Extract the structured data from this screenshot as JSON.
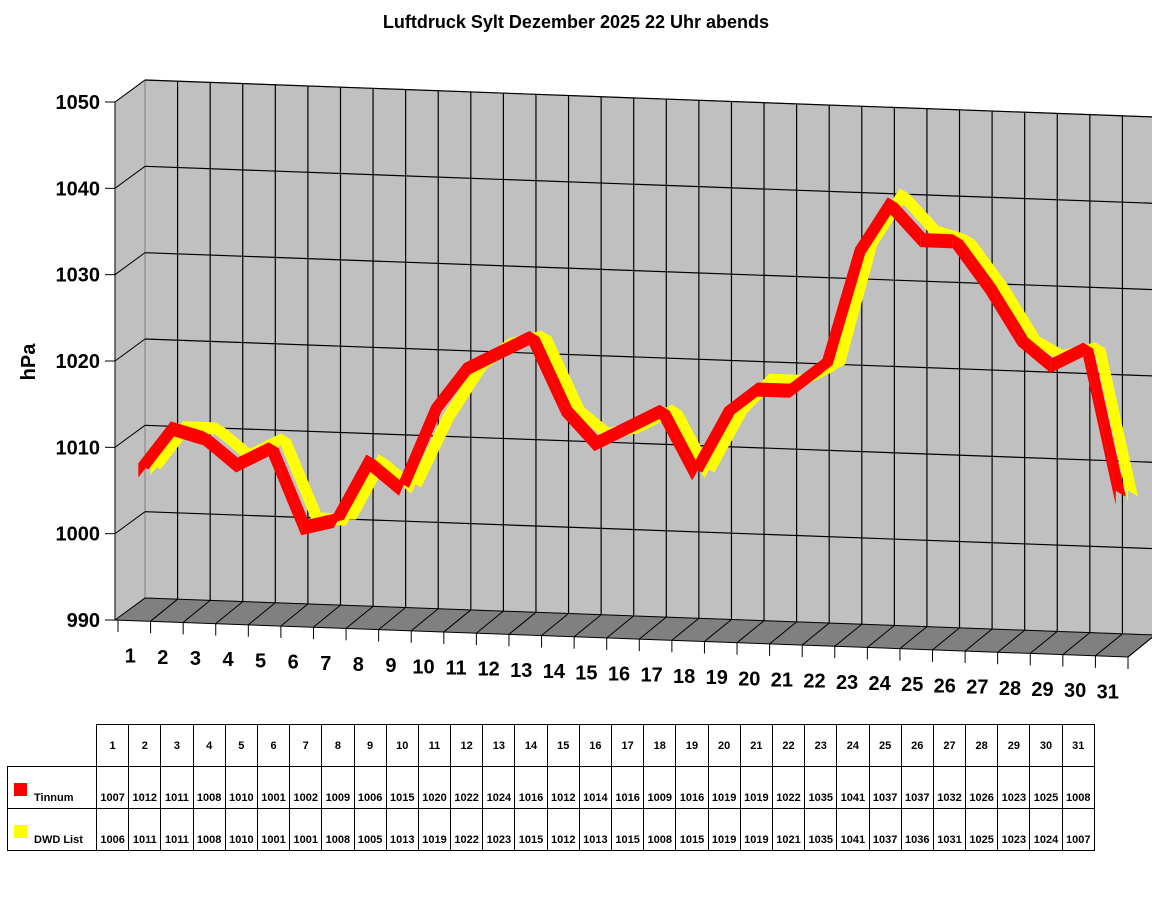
{
  "chart_data": {
    "type": "line",
    "title": "Luftdruck Sylt Dezember 2025 22 Uhr abends",
    "xlabel": "",
    "ylabel": "hPa",
    "ylim": [
      990,
      1050
    ],
    "yticks": [
      990,
      1000,
      1010,
      1020,
      1030,
      1040,
      1050
    ],
    "grid": true,
    "style": "3d-ribbon",
    "legend_position": "data-table-below",
    "categories": [
      "1",
      "2",
      "3",
      "4",
      "5",
      "6",
      "7",
      "8",
      "9",
      "10",
      "11",
      "12",
      "13",
      "14",
      "15",
      "16",
      "17",
      "18",
      "19",
      "20",
      "21",
      "22",
      "23",
      "24",
      "25",
      "26",
      "27",
      "28",
      "29",
      "30",
      "31"
    ],
    "series": [
      {
        "name": "Tinnum",
        "color": "#ff0000",
        "values": [
          1007,
          1012,
          1011,
          1008,
          1010,
          1001,
          1002,
          1009,
          1006,
          1015,
          1020,
          1022,
          1024,
          1016,
          1012,
          1014,
          1016,
          1009,
          1016,
          1019,
          1019,
          1022,
          1035,
          1041,
          1037,
          1037,
          1032,
          1026,
          1023,
          1025,
          1008
        ]
      },
      {
        "name": "DWD List",
        "color": "#ffff00",
        "values": [
          1006,
          1011,
          1011,
          1008,
          1010,
          1001,
          1001,
          1008,
          1005,
          1013,
          1019,
          1022,
          1023,
          1015,
          1012,
          1013,
          1015,
          1008,
          1015,
          1019,
          1019,
          1021,
          1035,
          1041,
          1037,
          1036,
          1031,
          1025,
          1023,
          1024,
          1007
        ]
      }
    ]
  },
  "colors": {
    "wall": "#c0c0c0",
    "floor": "#808080",
    "grid": "#000000",
    "tinnum": "#ff0000",
    "dwd": "#ffff00"
  }
}
